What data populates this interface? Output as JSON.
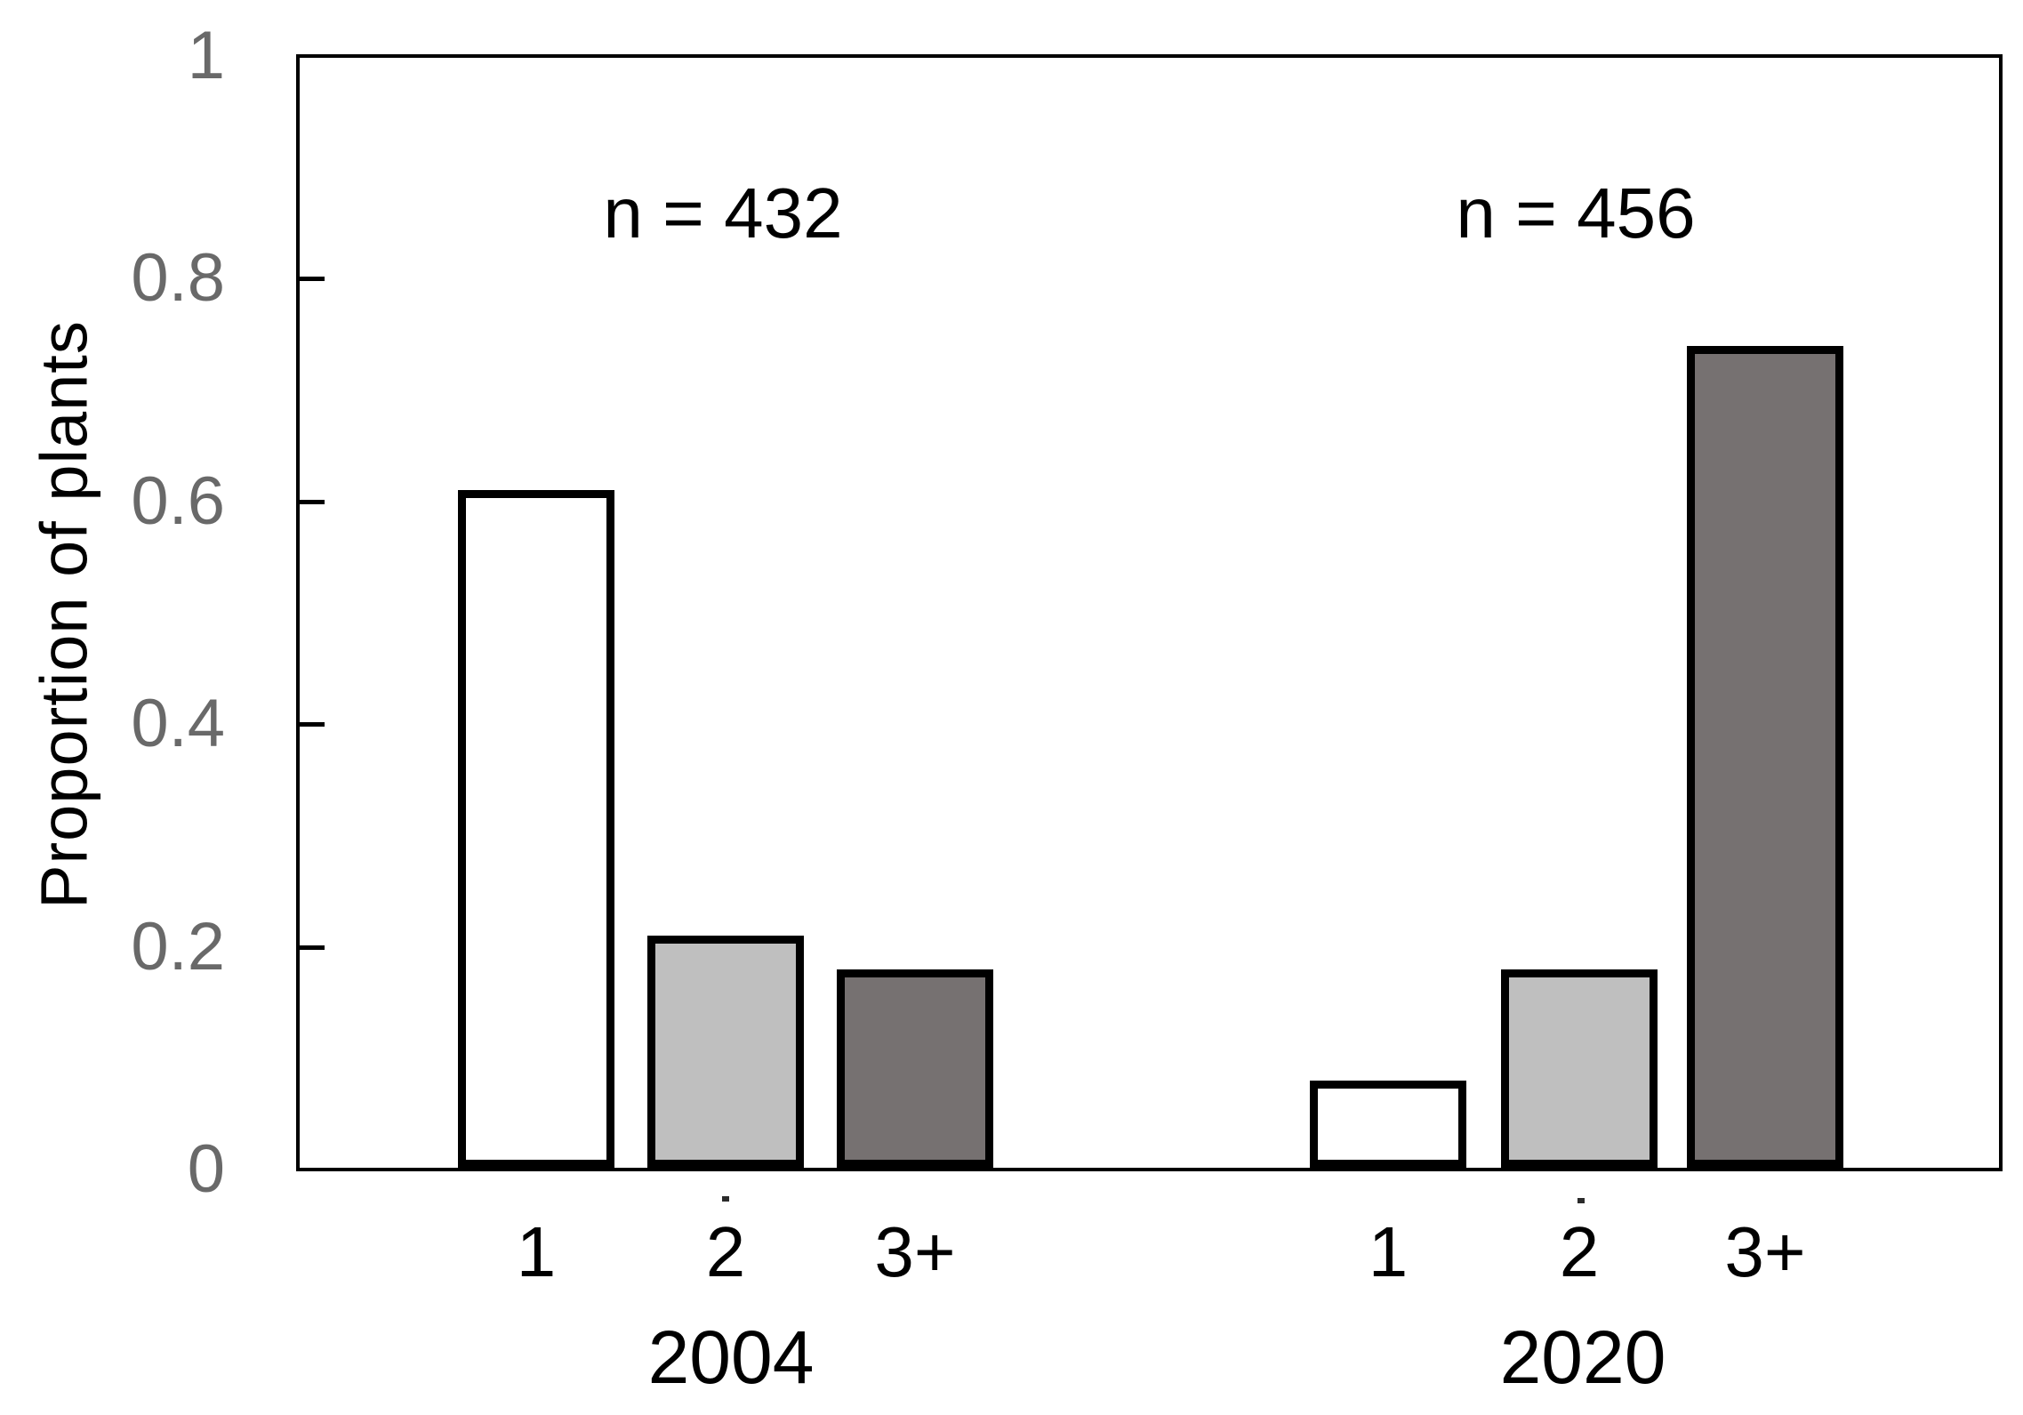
{
  "chart_data": {
    "type": "bar",
    "title": "",
    "xlabel": "",
    "ylabel": "Proportion of plants",
    "ylim": [
      0,
      1
    ],
    "yticks": [
      0,
      0.2,
      0.4,
      0.6,
      0.8,
      1
    ],
    "ytick_labels": [
      "0",
      "0.2",
      "0.4",
      "0.6",
      "0.8",
      "1"
    ],
    "categories": [
      "1",
      "2",
      "3+"
    ],
    "groups": [
      {
        "label": "2004",
        "annotation": "n = 432",
        "values": [
          0.61,
          0.21,
          0.18
        ]
      },
      {
        "label": "2020",
        "annotation": "n = 456",
        "values": [
          0.08,
          0.18,
          0.74
        ]
      }
    ],
    "series_note": "bars ordered 1, 2, 3+ within each year group",
    "bar_fill_colors": [
      "#ffffff",
      "#bfbfbf",
      "#767171"
    ],
    "bar_border_color": "#000000",
    "axis_color": "#000000",
    "tick_label_color": "#696969",
    "grid": false,
    "legend": "none"
  }
}
